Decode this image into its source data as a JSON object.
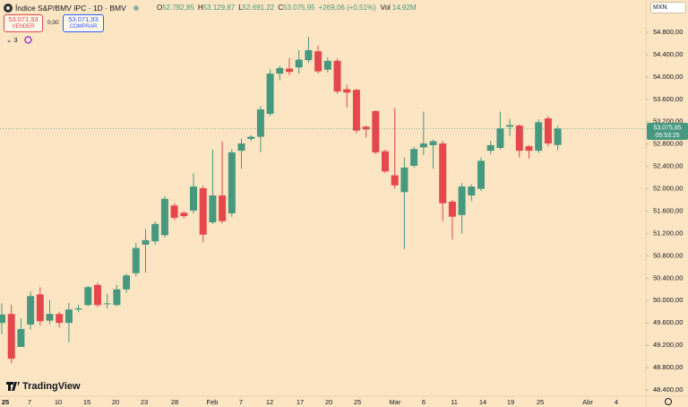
{
  "header": {
    "title": "Índice S&P/BMV IPC · 1D · BMV",
    "ohlc": [
      {
        "key": "O",
        "value": "52.782,85"
      },
      {
        "key": "H",
        "value": "53.129,87"
      },
      {
        "key": "L",
        "value": "52.691,22"
      },
      {
        "key": "C",
        "value": "53.075,95"
      }
    ],
    "change": "+269,06 (+0,51%)",
    "volume_key": "Vol",
    "volume": "14,92M",
    "sell_price": "53.071,93",
    "sell_label": "VENDER",
    "spread": "0,00",
    "buy_price": "53.071,93",
    "buy_label": "COMPRAR",
    "indicators": "3",
    "currency": "MXN",
    "brand": "TradingView"
  },
  "chart_data": {
    "type": "candlestick",
    "open": [
      49600,
      49760,
      49170,
      49570,
      50110,
      49640,
      49760,
      49600,
      49840,
      49920,
      50280,
      49940,
      49920,
      50200,
      50490,
      51000,
      51060,
      51170,
      51700,
      51570,
      51610,
      52010,
      51400,
      51880,
      51560,
      52680,
      52890,
      52930,
      53340,
      54060,
      54150,
      54170,
      54300,
      54460,
      54130,
      54290,
      53780,
      53770,
      53110,
      53390,
      52670,
      52240,
      51940,
      52410,
      52740,
      52780,
      52810,
      51770,
      51530,
      51880,
      52000,
      52680,
      52730,
      53110,
      53130,
      52760,
      52680,
      53260,
      52782.85
    ],
    "high": [
      49950,
      49920,
      49680,
      50160,
      50240,
      50010,
      49800,
      49960,
      49920,
      50260,
      50320,
      50120,
      50280,
      50480,
      51030,
      51280,
      51420,
      51870,
      51740,
      51600,
      52280,
      52050,
      52700,
      52850,
      52710,
      52900,
      52960,
      53480,
      54140,
      54200,
      54340,
      54480,
      54720,
      54560,
      54350,
      54330,
      53860,
      53790,
      53130,
      53400,
      52700,
      53450,
      52560,
      52750,
      53380,
      52880,
      52860,
      51800,
      52100,
      52080,
      52560,
      52860,
      53380,
      53250,
      53150,
      52780,
      53240,
      53300,
      53129.87
    ],
    "low": [
      49400,
      48880,
      49170,
      49480,
      49550,
      49580,
      49520,
      49250,
      49790,
      49900,
      49880,
      49860,
      49900,
      50140,
      50430,
      50500,
      51000,
      51130,
      51440,
      51470,
      51560,
      51040,
      51370,
      51380,
      51500,
      52360,
      52850,
      52660,
      53300,
      53940,
      54030,
      54060,
      54250,
      54060,
      54080,
      53700,
      53450,
      52990,
      52920,
      52620,
      52280,
      52000,
      50920,
      52380,
      52600,
      52360,
      51420,
      51090,
      51200,
      51780,
      51960,
      52620,
      52700,
      52940,
      52560,
      52540,
      52640,
      52760,
      52691.22
    ],
    "close": [
      49750,
      48960,
      49490,
      50080,
      49630,
      49760,
      49600,
      49840,
      49860,
      50240,
      49920,
      49950,
      50200,
      50450,
      50940,
      51080,
      51370,
      51820,
      51480,
      51510,
      52040,
      51180,
      51880,
      51420,
      52650,
      52810,
      52930,
      53420,
      54060,
      54160,
      54090,
      54310,
      54480,
      54100,
      54290,
      53740,
      53720,
      53040,
      53060,
      52650,
      52310,
      52060,
      52380,
      52710,
      52810,
      52850,
      51740,
      51500,
      52040,
      52040,
      52500,
      52780,
      53080,
      53140,
      52680,
      52680,
      53190,
      52810,
      53075.95
    ],
    "up_color": "#46997f",
    "down_color": "#e4474c",
    "ylim": [
      48304,
      55377
    ],
    "yticks": [
      {
        "value": 48400,
        "label": "48.400,00"
      },
      {
        "value": 48800,
        "label": "48.800,00"
      },
      {
        "value": 49200,
        "label": "49.200,00"
      },
      {
        "value": 49600,
        "label": "49.600,00"
      },
      {
        "value": 50000,
        "label": "50.000,00"
      },
      {
        "value": 50400,
        "label": "50.400,00"
      },
      {
        "value": 50800,
        "label": "50.800,00"
      },
      {
        "value": 51200,
        "label": "51.200,00"
      },
      {
        "value": 51600,
        "label": "51.600,00"
      },
      {
        "value": 52000,
        "label": "52.000,00"
      },
      {
        "value": 52400,
        "label": "52.400,00"
      },
      {
        "value": 52800,
        "label": "52.800,00"
      },
      {
        "value": 53200,
        "label": "53.200,00"
      },
      {
        "value": 53600,
        "label": "53.600,00"
      },
      {
        "value": 54000,
        "label": "54.000,00"
      },
      {
        "value": 54400,
        "label": "54.400,00"
      },
      {
        "value": 54800,
        "label": "54.800,00"
      }
    ],
    "x_labels": [
      "25",
      "7",
      "10",
      "15",
      "20",
      "23",
      "28",
      "Feb",
      "7",
      "12",
      "17",
      "20",
      "25",
      "Mar",
      "6",
      "11",
      "14",
      "19",
      "25",
      "Abr",
      "4"
    ],
    "last_price_label": "53.075,95",
    "countdown": "05:53:25"
  }
}
